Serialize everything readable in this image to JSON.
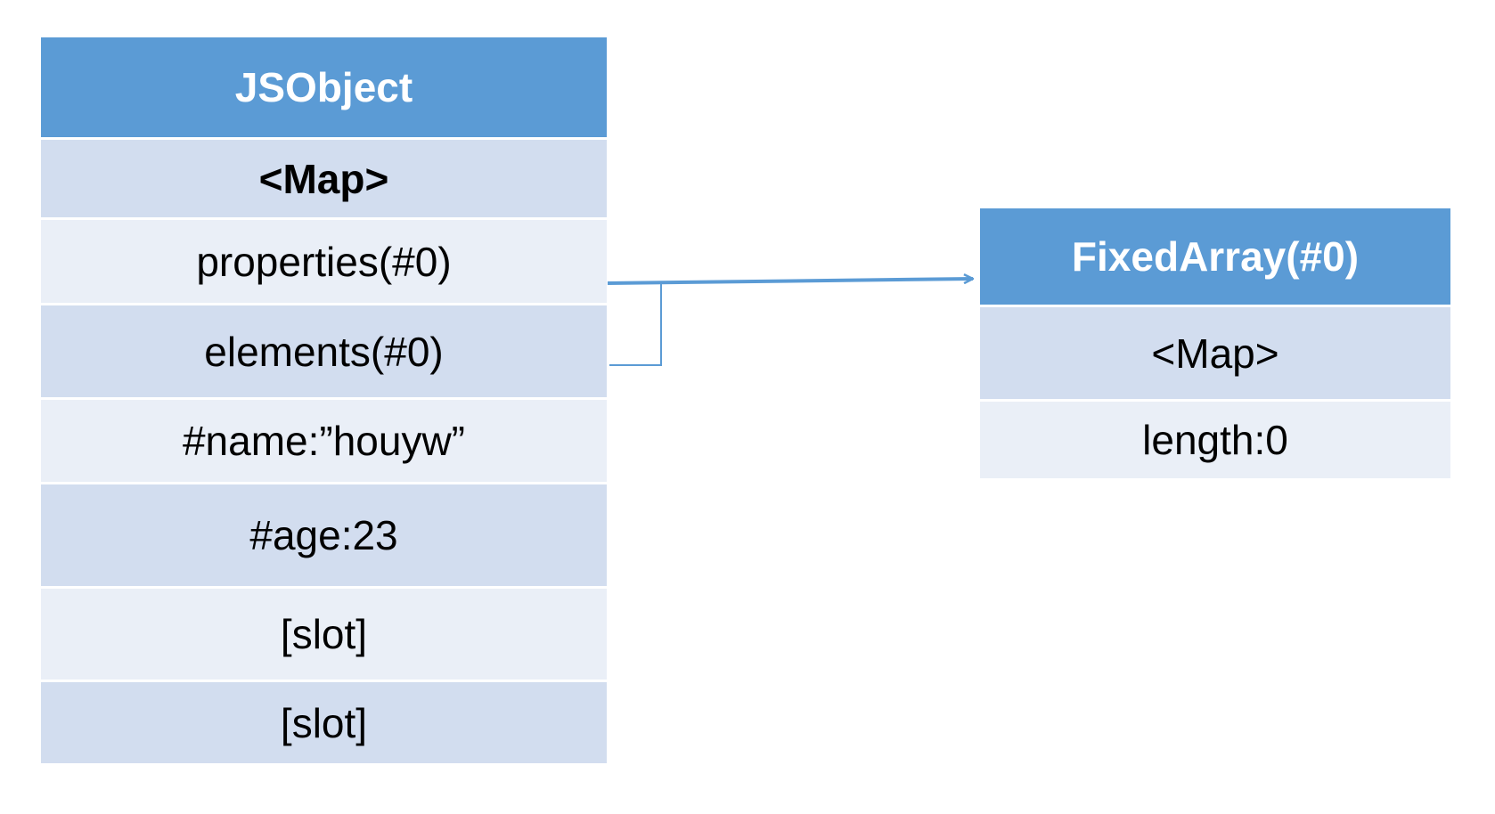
{
  "colors": {
    "header": "#5b9bd5",
    "row_dark": "#d2ddef",
    "row_light": "#eaeff7",
    "connector": "#5b9bd5"
  },
  "jsobject": {
    "title": "JSObject",
    "map": "<Map>",
    "properties": "properties(#0)",
    "elements": "elements(#0)",
    "name_field": "#name:”houyw”",
    "age_field": "#age:23",
    "slot_1": "[slot]",
    "slot_2": "[slot]"
  },
  "fixed_array": {
    "title": "FixedArray(#0)",
    "map": "<Map>",
    "length": "length:0"
  }
}
